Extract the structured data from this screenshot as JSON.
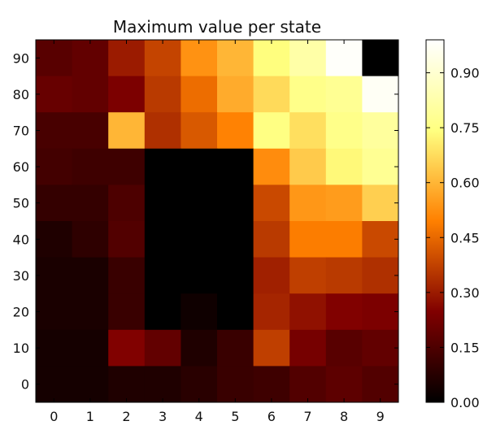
{
  "chart_data": {
    "type": "heatmap",
    "title": "Maximum value per state",
    "xlabel": "",
    "ylabel": "",
    "x_ticks": [
      "0",
      "1",
      "2",
      "3",
      "4",
      "5",
      "6",
      "7",
      "8",
      "9"
    ],
    "y_ticks": [
      "0",
      "10",
      "20",
      "30",
      "40",
      "50",
      "60",
      "70",
      "80",
      "90"
    ],
    "colormap": "afmhot",
    "colorbar": {
      "ticks": [
        "0.00",
        "0.15",
        "0.30",
        "0.45",
        "0.60",
        "0.75",
        "0.90"
      ],
      "tick_values": [
        0.0,
        0.15,
        0.3,
        0.45,
        0.6,
        0.75,
        0.9
      ],
      "range": [
        0.0,
        0.99
      ]
    },
    "grid": false,
    "rows_top_to_bottom": [
      [
        0.17,
        0.19,
        0.3,
        0.38,
        0.53,
        0.6,
        0.74,
        0.82,
        0.98,
        0.0
      ],
      [
        0.2,
        0.19,
        0.24,
        0.36,
        0.46,
        0.58,
        0.67,
        0.76,
        0.78,
        0.97
      ],
      [
        0.14,
        0.14,
        0.6,
        0.34,
        0.42,
        0.5,
        0.75,
        0.68,
        0.76,
        0.8
      ],
      [
        0.13,
        0.12,
        0.12,
        0.0,
        0.0,
        0.0,
        0.52,
        0.64,
        0.73,
        0.78
      ],
      [
        0.1,
        0.1,
        0.15,
        0.0,
        0.0,
        0.0,
        0.39,
        0.54,
        0.55,
        0.65
      ],
      [
        0.06,
        0.09,
        0.16,
        0.0,
        0.0,
        0.0,
        0.36,
        0.49,
        0.49,
        0.39
      ],
      [
        0.05,
        0.05,
        0.11,
        0.0,
        0.0,
        0.0,
        0.31,
        0.37,
        0.36,
        0.34
      ],
      [
        0.05,
        0.05,
        0.11,
        0.0,
        0.03,
        0.0,
        0.32,
        0.28,
        0.25,
        0.24
      ],
      [
        0.04,
        0.04,
        0.25,
        0.19,
        0.06,
        0.11,
        0.37,
        0.23,
        0.17,
        0.19
      ],
      [
        0.04,
        0.04,
        0.06,
        0.06,
        0.08,
        0.11,
        0.12,
        0.16,
        0.18,
        0.16
      ]
    ]
  }
}
